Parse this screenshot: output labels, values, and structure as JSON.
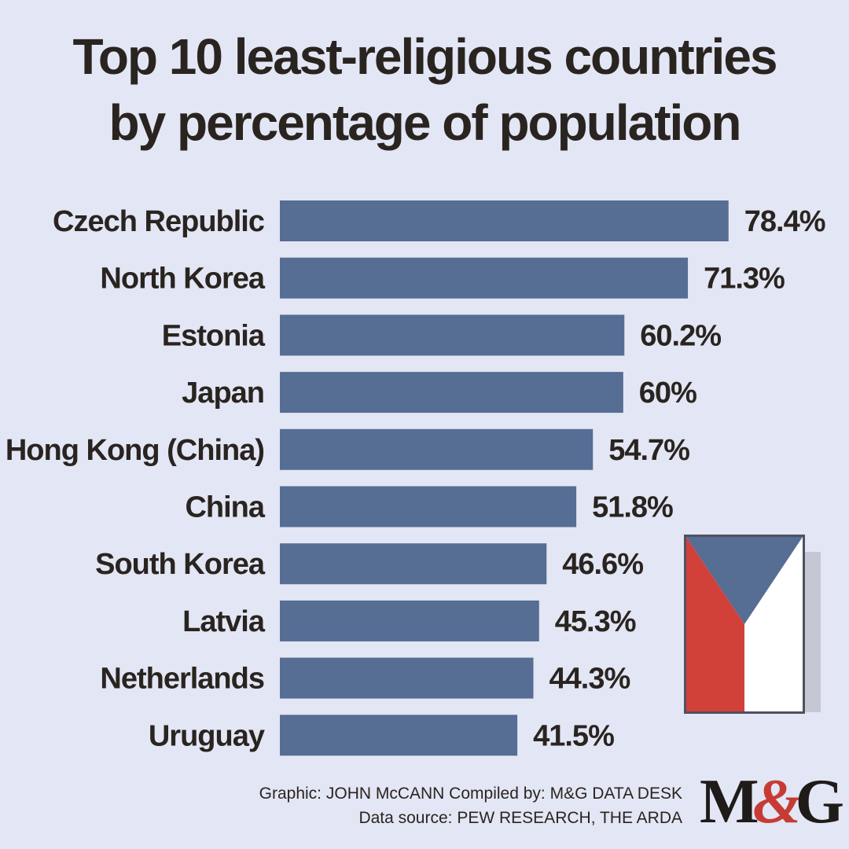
{
  "title": {
    "line1": "Top 10 least-religious countries",
    "line2": "by percentage of population"
  },
  "chart_data": {
    "type": "bar",
    "orientation": "horizontal",
    "categories": [
      "Czech Republic",
      "North Korea",
      "Estonia",
      "Japan",
      "Hong Kong (China)",
      "China",
      "South Korea",
      "Latvia",
      "Netherlands",
      "Uruguay"
    ],
    "values": [
      78.4,
      71.3,
      60.2,
      60,
      54.7,
      51.8,
      46.6,
      45.3,
      44.3,
      41.5
    ],
    "value_labels": [
      "78.4%",
      "71.3%",
      "60.2%",
      "60%",
      "54.7%",
      "51.8%",
      "46.6%",
      "45.3%",
      "44.3%",
      "41.5%"
    ],
    "title": "Top 10 least-religious countries by percentage of population",
    "bar_color": "#566d94",
    "grid": false,
    "legend": "none"
  },
  "flag": {
    "icon": "czech-flag-icon",
    "colors": {
      "blue": "#566d94",
      "red": "#d2403a",
      "white": "#ffffff"
    }
  },
  "credits": {
    "graphic": "Graphic: JOHN McCANN  Compiled by: M&G DATA DESK",
    "source": "Data source: PEW RESEARCH, THE ARDA"
  },
  "logo": {
    "m": "M",
    "amp": "&",
    "g": "G"
  },
  "colors": {
    "background": "#e3e6f4",
    "text": "#2a2420",
    "accent": "#c73b35"
  }
}
